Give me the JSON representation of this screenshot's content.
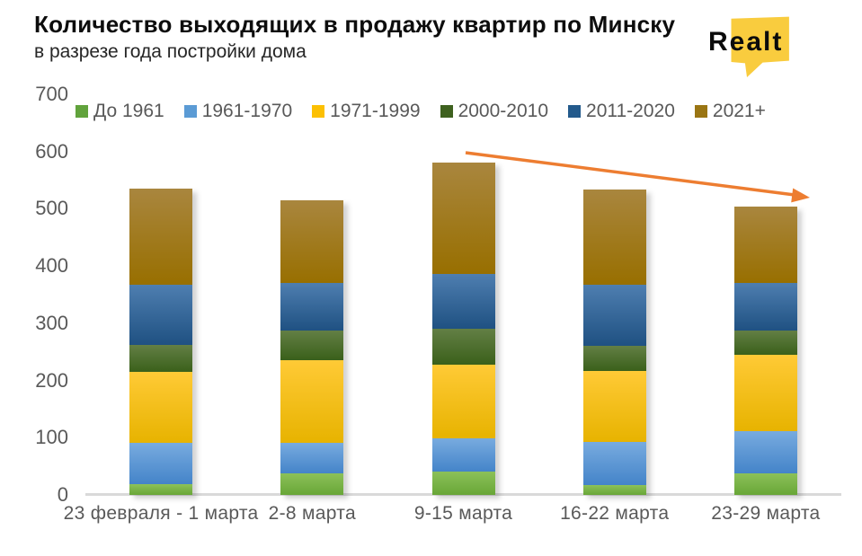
{
  "logo": {
    "text": "Realt",
    "bg_color": "#F9CC3E",
    "text_color": "#0B0B0B"
  },
  "chart_data": {
    "type": "bar",
    "stacked": true,
    "title": "Количество выходящих в продажу квартир по Минску",
    "subtitle": "в разрезе года постройки дома",
    "categories": [
      "23 февраля - 1 марта",
      "2-8 марта",
      "9-15 марта",
      "16-22 марта",
      "23-29 марта"
    ],
    "series": [
      {
        "name": "До 1961",
        "values": [
          18,
          38,
          41,
          18,
          38
        ],
        "color": "#61A33C",
        "color_top": "#8CC159",
        "color_bottom": "#68A637"
      },
      {
        "name": "1961-1970",
        "values": [
          73,
          53,
          58,
          74,
          73
        ],
        "color": "#5B9BD5",
        "color_top": "#78ABDF",
        "color_bottom": "#4484C9"
      },
      {
        "name": "1971-1999",
        "values": [
          124,
          145,
          129,
          124,
          134
        ],
        "color": "#FCC003",
        "color_top": "#FFCA36",
        "color_bottom": "#E7B300"
      },
      {
        "name": "2000-2010",
        "values": [
          47,
          51,
          62,
          44,
          42
        ],
        "color": "#3E611F",
        "color_top": "#637F45",
        "color_bottom": "#3A601A"
      },
      {
        "name": "2011-2020",
        "values": [
          106,
          83,
          96,
          108,
          83
        ],
        "color": "#235A8C",
        "color_top": "#4E7EB0",
        "color_bottom": "#1F5182"
      },
      {
        "name": "2021+",
        "values": [
          167,
          145,
          194,
          166,
          134
        ],
        "color": "#9A7513",
        "color_top": "#A9863E",
        "color_bottom": "#986F00"
      }
    ],
    "totals": [
      535,
      515,
      580,
      534,
      504
    ],
    "ylim": [
      0,
      700
    ],
    "yticks": [
      0,
      100,
      200,
      300,
      400,
      500,
      600,
      700
    ],
    "grid": false,
    "legend_position": "top",
    "axis_text_color": "#595959",
    "annotation": {
      "type": "trend_arrow",
      "direction": "down",
      "color": "#ED7D31"
    }
  }
}
